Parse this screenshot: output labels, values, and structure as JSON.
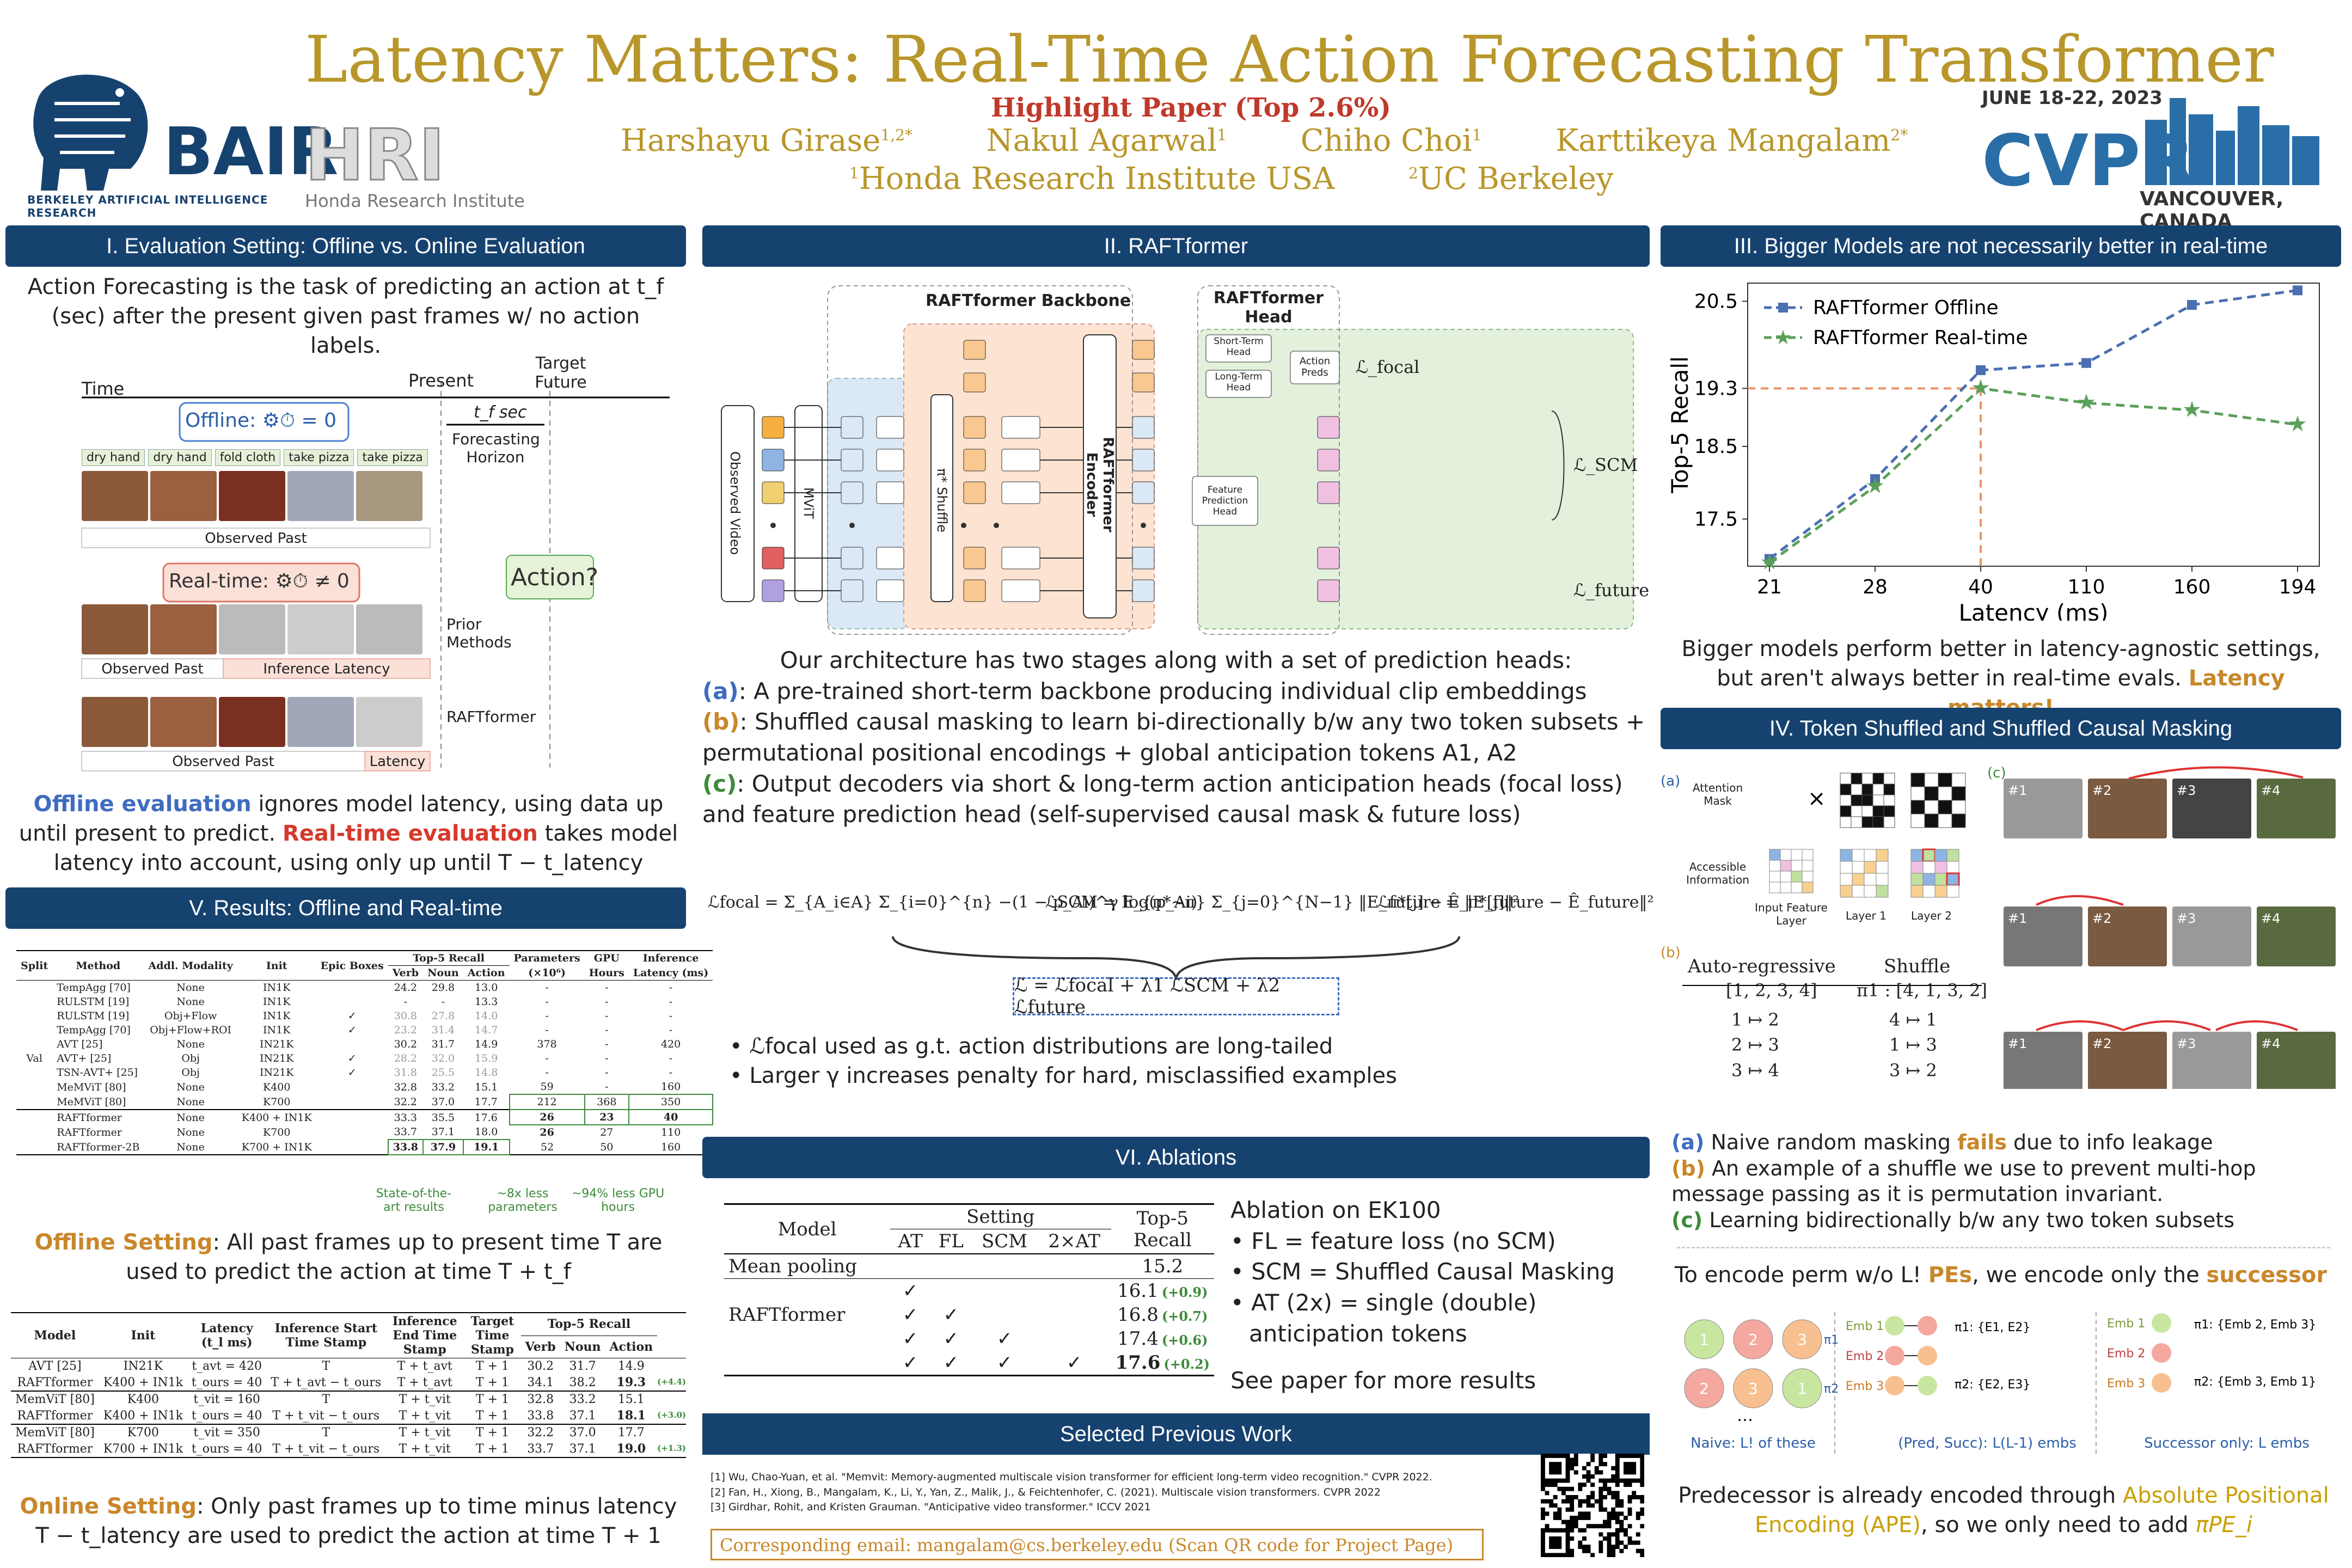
{
  "header": {
    "title": "Latency Matters: Real-Time Action Forecasting Transformer",
    "highlight": "Highlight Paper (Top 2.6%)",
    "authors": [
      {
        "name": "Harshayu Girase",
        "sup": "1,2*"
      },
      {
        "name": "Nakul Agarwal",
        "sup": "1"
      },
      {
        "name": "Chiho Choi",
        "sup": "1"
      },
      {
        "name": "Karttikeya Mangalam",
        "sup": "2*"
      }
    ],
    "affil1": "Honda Research Institute USA",
    "affil1_sup": "1",
    "affil2": "UC Berkeley",
    "affil2_sup": "2",
    "bair": "BAIR",
    "bair_sub": "BERKELEY ARTIFICIAL INTELLIGENCE RESEARCH",
    "hri": "HRI",
    "hri_sub": "Honda Research Institute",
    "cvpr_date": "JUNE 18-22, 2023",
    "cvpr": "CVPR",
    "cvpr_loc": "VANCOUVER, CANADA"
  },
  "s1": {
    "heading": "I. Evaluation Setting: Offline vs. Online Evaluation",
    "intro": "Action Forecasting is the task of predicting an action at t_f (sec) after the present given past frames w/ no action labels.",
    "time": "Time",
    "present": "Present",
    "target": "Target Future",
    "tf": "t_f sec",
    "horizon": "Forecasting Horizon",
    "offline_label": "Offline:",
    "offline_eq": "= 0",
    "actions": [
      "dry hand",
      "dry hand",
      "fold cloth",
      "take pizza",
      "take pizza"
    ],
    "observed_past": "Observed Past",
    "realtime_label": "Real-time:",
    "realtime_eq": "≠ 0",
    "action_q": "Action?",
    "prior": "Prior Methods",
    "inf_lat": "Inference Latency",
    "raft": "RAFTformer",
    "latency": "Latency",
    "offline_eval": "Offline evaluation",
    "offline_rest": " ignores model latency, using data up until present to predict. ",
    "rt_eval": "Real-time evaluation",
    "rt_rest": " takes model latency into account, using only up until T − t_latency"
  },
  "s2": {
    "heading": "II. RAFTformer",
    "backbone": "RAFTformer Backbone",
    "head": "RAFTformer Head",
    "observed_video": "Observed Video",
    "mvit": "MViT",
    "shuffle": "π* Shuffle",
    "encoder": "RAFTformer Encoder",
    "st_head": "Short-Term Head",
    "lt_head": "Long-Term Head",
    "action_preds": "Action Preds",
    "fp_head": "Feature Prediction Head",
    "l_focal": "ℒ_focal",
    "l_scm": "ℒ_SCM",
    "l_future": "ℒ_future",
    "arch": "Our architecture has two stages along with a set of prediction heads:",
    "a": "(a)",
    "a_text": ": A pre-trained short-term backbone producing individual clip embeddings",
    "b": "(b)",
    "b_text": ": Shuffled causal masking to learn bi-directionally b/w any two token subsets + permutational positional encodings + global anticipation tokens A1, A2",
    "c": "(c)",
    "c_text": ": Output decoders via short & long-term action anticipation heads (focal loss) and feature prediction head (self-supervised causal mask & future loss)",
    "eq1": "ℒfocal = Σ_{A_i∈A} Σ_{i=0}^{n} −(1 − p_Ai)^γ log(p_Ai)",
    "eq2": "ℒSCM = E_{π*∼π} Σ_{j=0}^{N−1} ‖E_π*[j] − Ê_π*[j]‖²",
    "eq3": "ℒfuture = ‖E_future − Ê_future‖²",
    "eq_total": "ℒ = ℒfocal + λ1 ℒSCM + λ2 ℒfuture",
    "bullet1": "ℒfocal used as g.t. action distributions are long-tailed",
    "bullet2": "Larger γ increases penalty for hard, misclassified examples"
  },
  "s3": {
    "heading": "III. Bigger Models are not necessarily better in real-time",
    "caption": "Bigger models perform better in latency-agnostic settings, but aren't always better in real-time evals. ",
    "caption_hl": "Latency matters!"
  },
  "chart_data": {
    "type": "line",
    "x": [
      "21",
      "28",
      "40",
      "110",
      "160",
      "194"
    ],
    "xlabel": "Latency (ms)",
    "ylabel": "Top-5 Recall",
    "yticks": [
      17.5,
      18.5,
      19.3,
      20.5
    ],
    "ylim": [
      16.85,
      20.75
    ],
    "series": [
      {
        "name": "RAFTformer Offline",
        "color": "#4b6fb0",
        "values": [
          16.95,
          18.05,
          19.55,
          19.65,
          20.45,
          20.65
        ]
      },
      {
        "name": "RAFTformer Real-time",
        "color": "#5aa05a",
        "values": [
          16.9,
          17.95,
          19.3,
          19.1,
          19.0,
          18.8
        ]
      }
    ],
    "legend": "top-left"
  },
  "s4": {
    "heading": "IV. Token Shuffled and Shuffled Causal Masking",
    "attn": "Attention Mask",
    "access": "Accessible Information",
    "in_layer": "Input Feature Layer",
    "l1": "Layer 1",
    "l2": "Layer 2",
    "ar": "Auto-regressive",
    "shuf": "Shuffle",
    "seq": "[1, 2, 3, 4]",
    "pi": "π1 : [4, 1, 3, 2]",
    "ar_rows": [
      "1 ↦ 2",
      "2 ↦ 3",
      "3 ↦ 4"
    ],
    "sh_rows": [
      "4 ↦ 1",
      "1 ↦ 3",
      "3 ↦ 2"
    ],
    "note_a": "(a)",
    "note_a_t": " Naive random masking ",
    "note_a_hl": "fails",
    "note_a_t2": " due to info leakage",
    "note_b": "(b)",
    "note_b_t": " An example of a shuffle we use to prevent multi-hop message passing as it is permutation invariant.",
    "note_c": "(c)",
    "note_c_t": " Learning bidirectionally b/w any two token subsets",
    "enc_t1": "To encode perm w/o L! ",
    "enc_pes": "PEs",
    "enc_t2": ", we encode only the ",
    "enc_succ": "successor",
    "naive": "Naive: L! of these",
    "predsucc": "(Pred, Succ): L(L-1) embs",
    "succonly": "Successor only: L embs",
    "pred_t1": "Predecessor is already encoded through ",
    "pred_ape": "Absolute Positional Encoding (APE)",
    "pred_t2": ", so we only need to add ",
    "pred_pe": "πPE_i",
    "frame_labels": [
      "#1",
      "#2",
      "#3",
      "#4"
    ]
  },
  "s5": {
    "heading": "V. Results: Offline and Real-time",
    "cols": [
      "Split",
      "Method",
      "Addl. Modality",
      "Init",
      "Epic Boxes",
      "Verb",
      "Noun",
      "Action",
      "(×10⁶)",
      "Hours",
      "Latency (ms)"
    ],
    "col_groups": [
      "Top-5 Recall",
      "Parameters",
      "GPU",
      "Inference"
    ],
    "split": "Val",
    "rows": [
      [
        "TempAgg [70]",
        "None",
        "IN1K",
        "",
        "24.2",
        "29.8",
        "13.0",
        "-",
        "-",
        "-"
      ],
      [
        "RULSTM [19]",
        "None",
        "IN1K",
        "",
        "-",
        "-",
        "13.3",
        "-",
        "-",
        "-"
      ],
      [
        "RULSTM [19]",
        "Obj+Flow",
        "IN1K",
        "✓",
        "30.8",
        "27.8",
        "14.0",
        "-",
        "-",
        "-"
      ],
      [
        "TempAgg [70]",
        "Obj+Flow+ROI",
        "IN1K",
        "✓",
        "23.2",
        "31.4",
        "14.7",
        "-",
        "-",
        "-"
      ],
      [
        "AVT [25]",
        "None",
        "IN21K",
        "",
        "30.2",
        "31.7",
        "14.9",
        "378",
        "-",
        "420"
      ],
      [
        "AVT+ [25]",
        "Obj",
        "IN21K",
        "✓",
        "28.2",
        "32.0",
        "15.9",
        "-",
        "-",
        "-"
      ],
      [
        "TSN-AVT+ [25]",
        "Obj",
        "IN21K",
        "✓",
        "31.8",
        "25.5",
        "14.8",
        "-",
        "-",
        "-"
      ],
      [
        "MeMViT [80]",
        "None",
        "K400",
        "",
        "32.8",
        "33.2",
        "15.1",
        "59",
        "-",
        "160"
      ],
      [
        "MeMViT [80]",
        "None",
        "K700",
        "",
        "32.2",
        "37.0",
        "17.7",
        "212",
        "368",
        "350"
      ],
      [
        "RAFTformer",
        "None",
        "K400 + IN1K",
        "",
        "33.3",
        "35.5",
        "17.6",
        "26",
        "23",
        "40"
      ],
      [
        "RAFTformer",
        "None",
        "K700",
        "",
        "33.7",
        "37.1",
        "18.0",
        "26",
        "27",
        "110"
      ],
      [
        "RAFTformer-2B",
        "None",
        "K700 + IN1K",
        "",
        "33.8",
        "37.9",
        "19.1",
        "52",
        "50",
        "160"
      ]
    ],
    "sota": "State-of-the-art results",
    "less8": "~8x less parameters",
    "less94": "~94% less GPU hours",
    "offline_setting": "Offline Setting",
    "offline_text": ": All past frames up to present time T are used to predict the action at time T + t_f",
    "rt_cols": [
      "Model",
      "Init",
      "Latency (t_l ms)",
      "Inference Start Time Stamp",
      "Inference End Time Stamp",
      "Target Time Stamp",
      "Verb",
      "Noun",
      "Action"
    ],
    "rt_group": "Top-5 Recall",
    "rt_rows": [
      [
        "AVT [25]",
        "IN21K",
        "t_avt = 420",
        "T",
        "T + t_avt",
        "T + 1",
        "30.2",
        "31.7",
        "14.9",
        ""
      ],
      [
        "RAFTformer",
        "K400 + IN1k",
        "t_ours = 40",
        "T + t_avt − t_ours",
        "T + t_avt",
        "T + 1",
        "34.1",
        "38.2",
        "19.3",
        "(+4.4)"
      ],
      [
        "MemViT [80]",
        "K400",
        "t_vit = 160",
        "T",
        "T + t_vit",
        "T + 1",
        "32.8",
        "33.2",
        "15.1",
        ""
      ],
      [
        "RAFTformer",
        "K400 + IN1k",
        "t_ours = 40",
        "T + t_vit − t_ours",
        "T + t_vit",
        "T + 1",
        "33.8",
        "37.1",
        "18.1",
        "(+3.0)"
      ],
      [
        "MemViT [80]",
        "K700",
        "t_vit = 350",
        "T",
        "T + t_vit",
        "T + 1",
        "32.2",
        "37.0",
        "17.7",
        ""
      ],
      [
        "RAFTformer",
        "K700 + IN1k",
        "t_ours = 40",
        "T + t_vit − t_ours",
        "T + t_vit",
        "T + 1",
        "33.7",
        "37.1",
        "19.0",
        "(+1.3)"
      ]
    ],
    "online_setting": "Online Setting",
    "online_text": ": Only past frames up to time minus latency T − t_latency are used to predict the action at time T + 1"
  },
  "s6": {
    "heading": "VI. Ablations",
    "model": "Model",
    "setting": "Setting",
    "top5": "Top-5 Recall",
    "cols": [
      "AT",
      "FL",
      "SCM",
      "2×AT"
    ],
    "mean_pool": "Mean pooling",
    "mean_val": "15.2",
    "raft": "RAFTformer",
    "rows": [
      [
        "✓",
        "",
        "",
        "",
        "16.1",
        "(+0.9)"
      ],
      [
        "✓",
        "✓",
        "",
        "",
        "16.8",
        "(+0.7)"
      ],
      [
        "✓",
        "✓",
        "✓",
        "",
        "17.4",
        "(+0.6)"
      ],
      [
        "✓",
        "✓",
        "✓",
        "✓",
        "17.6",
        "(+0.2)"
      ]
    ],
    "abl_title": "Ablation on EK100",
    "abl": [
      "• FL = feature loss (no SCM)",
      "• SCM = Shuffled Causal Masking",
      "• AT (2x) = single (double)",
      "anticipation tokens"
    ],
    "see": "See paper for more results"
  },
  "s7": {
    "heading": "Selected Previous Work",
    "refs": [
      "[1] Wu, Chao-Yuan, et al. \"Memvit: Memory-augmented multiscale vision transformer for efficient long-term video recognition.\" CVPR 2022.",
      "[2] Fan, H., Xiong, B., Mangalam, K., Li, Y., Yan, Z., Malik, J., & Feichtenhofer, C. (2021). Multiscale vision transformers. CVPR 2022",
      "[3] Girdhar, Rohit, and Kristen Grauman. \"Anticipative video transformer.\" ICCV 2021"
    ],
    "email": "Corresponding email: mangalam@cs.berkeley.edu (Scan QR code for Project Page)"
  }
}
